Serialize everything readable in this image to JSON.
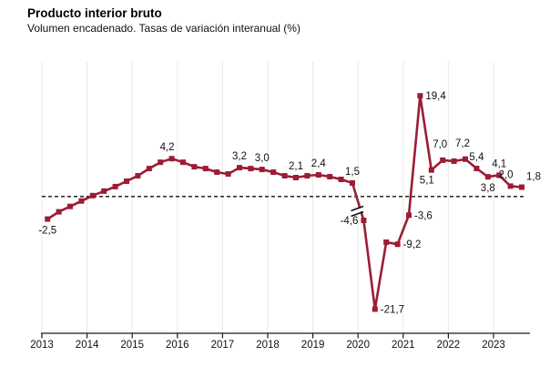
{
  "header": {
    "title": "Producto interior bruto",
    "subtitle": "Volumen encadenado. Tasas de variación interanual (%)"
  },
  "chart_data": {
    "type": "line",
    "title": "Producto interior bruto",
    "subtitle": "Volumen encadenado. Tasas de variación interanual (%)",
    "unit": "percent, year-on-year rate",
    "frequency": "quarterly",
    "start_period": "2013-Q1",
    "end_period": "2023-Q3",
    "x_tick_labels": [
      "2013",
      "2014",
      "2015",
      "2016",
      "2017",
      "2018",
      "2019",
      "2020",
      "2021",
      "2022",
      "2023"
    ],
    "zero_line_dashed": true,
    "axis_break_after_index": 27,
    "line_color": "#9c1c35",
    "grid_color": "#e8e8e8",
    "axis_color": "#1a1a1a",
    "values": [
      -2.5,
      -1.7,
      -1.1,
      -0.5,
      0.1,
      0.6,
      1.1,
      1.7,
      2.3,
      3.1,
      3.8,
      4.2,
      3.8,
      3.3,
      3.1,
      2.7,
      2.5,
      3.2,
      3.1,
      3.0,
      2.7,
      2.3,
      2.1,
      2.3,
      2.4,
      2.2,
      1.9,
      1.5,
      -4.6,
      -21.7,
      -8.8,
      -9.2,
      -3.6,
      19.4,
      5.1,
      7.0,
      6.8,
      7.2,
      5.4,
      3.8,
      4.1,
      2.0,
      1.8
    ],
    "point_labels": [
      {
        "index": 0,
        "text": "-2,5",
        "pos": "below"
      },
      {
        "index": 11,
        "text": "4,2",
        "pos": "above-left"
      },
      {
        "index": 17,
        "text": "3,2",
        "pos": "above"
      },
      {
        "index": 19,
        "text": "3,0",
        "pos": "above"
      },
      {
        "index": 22,
        "text": "2,1",
        "pos": "above"
      },
      {
        "index": 24,
        "text": "2,4",
        "pos": "above"
      },
      {
        "index": 27,
        "text": "1,5",
        "pos": "above"
      },
      {
        "index": 28,
        "text": "-4,6",
        "pos": "left"
      },
      {
        "index": 29,
        "text": "-21,7",
        "pos": "right"
      },
      {
        "index": 31,
        "text": "-9,2",
        "pos": "right"
      },
      {
        "index": 32,
        "text": "-3,6",
        "pos": "right"
      },
      {
        "index": 33,
        "text": "19,4",
        "pos": "right"
      },
      {
        "index": 34,
        "text": "5,1",
        "pos": "below-left"
      },
      {
        "index": 35,
        "text": "7,0",
        "pos": "above-high"
      },
      {
        "index": 37,
        "text": "7,2",
        "pos": "above-high"
      },
      {
        "index": 38,
        "text": "5,4",
        "pos": "above"
      },
      {
        "index": 39,
        "text": "3,8",
        "pos": "below"
      },
      {
        "index": 40,
        "text": "4,1",
        "pos": "above"
      },
      {
        "index": 41,
        "text": "2,0",
        "pos": "above-left"
      },
      {
        "index": 42,
        "text": "1,8",
        "pos": "right-up"
      }
    ]
  }
}
